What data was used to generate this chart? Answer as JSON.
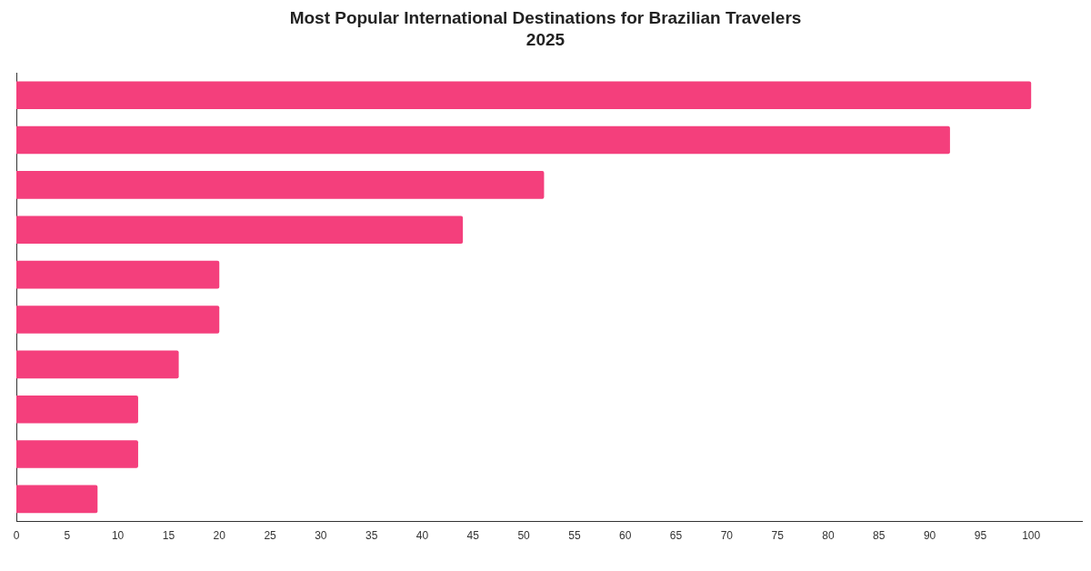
{
  "chart_data": {
    "type": "bar",
    "orientation": "horizontal",
    "title": "Most Popular International Destinations for Brazilian Travelers 2025",
    "categories": [
      null,
      null,
      null,
      null,
      null,
      null,
      null,
      null,
      null,
      null
    ],
    "values": [
      100,
      92,
      52,
      44,
      20,
      20,
      16,
      12,
      12,
      8
    ],
    "color": "#f43f7c",
    "xlim": [
      0,
      105
    ],
    "xticks": [
      0,
      5,
      10,
      15,
      20,
      25,
      30,
      35,
      40,
      45,
      50,
      55,
      60,
      65,
      70,
      75,
      80,
      85,
      90,
      95,
      100
    ],
    "grid": false,
    "legend": false
  }
}
